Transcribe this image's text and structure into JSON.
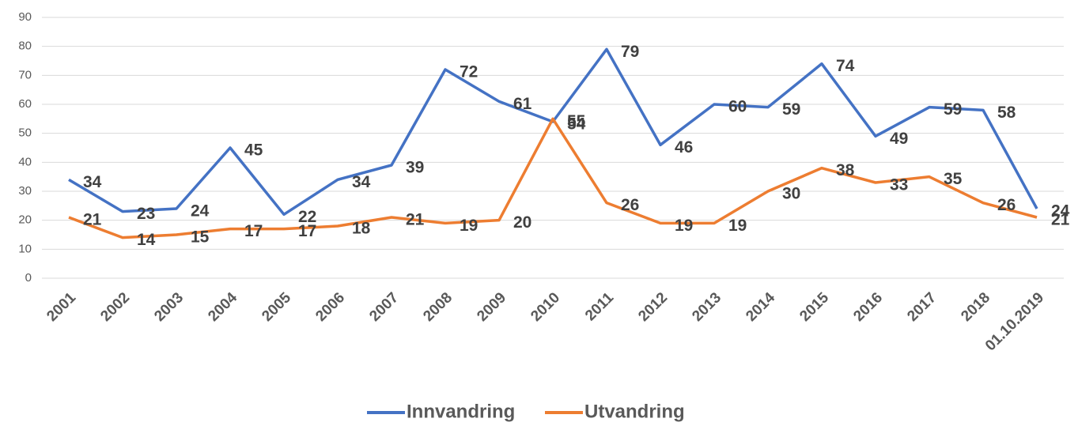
{
  "chart_data": {
    "type": "line",
    "categories": [
      "2001",
      "2002",
      "2003",
      "2004",
      "2005",
      "2006",
      "2007",
      "2008",
      "2009",
      "2010",
      "2011",
      "2012",
      "2013",
      "2014",
      "2015",
      "2016",
      "2017",
      "2018",
      "01.10.2019"
    ],
    "series": [
      {
        "name": "Innvandring",
        "color": "#4472c4",
        "values": [
          34,
          23,
          24,
          45,
          22,
          34,
          39,
          72,
          61,
          54,
          79,
          46,
          60,
          59,
          74,
          49,
          59,
          58,
          24
        ]
      },
      {
        "name": "Utvandring",
        "color": "#ed7d31",
        "values": [
          21,
          14,
          15,
          17,
          17,
          18,
          21,
          19,
          20,
          55,
          26,
          19,
          19,
          30,
          38,
          33,
          35,
          26,
          21
        ]
      }
    ],
    "ylim": [
      0,
      90
    ],
    "yticks": [
      0,
      10,
      20,
      30,
      40,
      50,
      60,
      70,
      80,
      90
    ],
    "grid": true,
    "legend": "bottom"
  }
}
